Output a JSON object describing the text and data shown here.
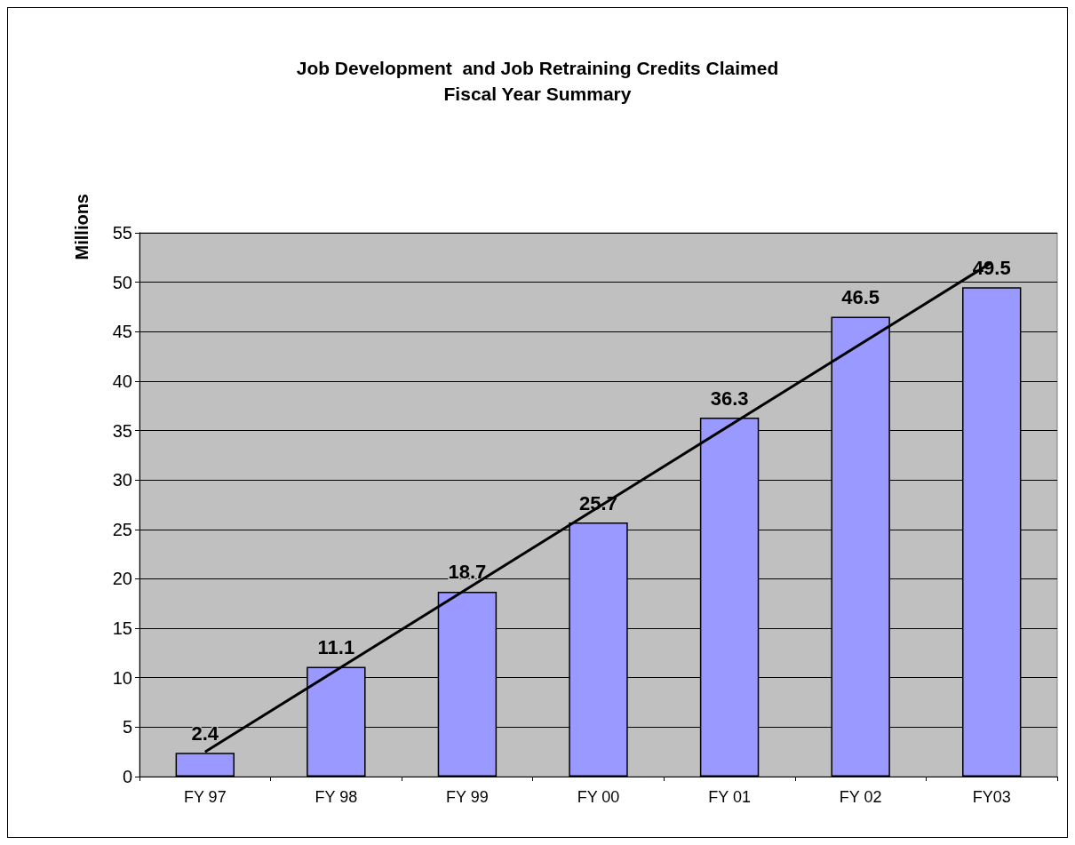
{
  "chart_data": {
    "type": "bar",
    "title": "Job Development  and Job Retraining Credits Claimed",
    "subtitle": "Fiscal Year Summary",
    "ylabel": "Millions",
    "categories": [
      "FY 97",
      "FY 98",
      "FY 99",
      "FY 00",
      "FY 01",
      "FY 02",
      "FY03"
    ],
    "series": [
      {
        "color": "#9999ff",
        "values": [
          2.4,
          11.1,
          18.7,
          25.7,
          36.3,
          46.5,
          49.5
        ],
        "value_labels": [
          "2.4",
          "11.1",
          "18.7",
          "25.7",
          "36.3",
          "46.5",
          "49.5"
        ]
      },
      {
        "type": "line",
        "color": "#000000",
        "x": [
          "FY 97",
          "FY03"
        ],
        "values": [
          2.5,
          52
        ]
      }
    ],
    "ylim": [
      0,
      55
    ],
    "yticks": [
      0,
      5,
      10,
      15,
      20,
      25,
      30,
      35,
      40,
      45,
      50,
      55
    ],
    "grid": "y",
    "marker": "none"
  }
}
